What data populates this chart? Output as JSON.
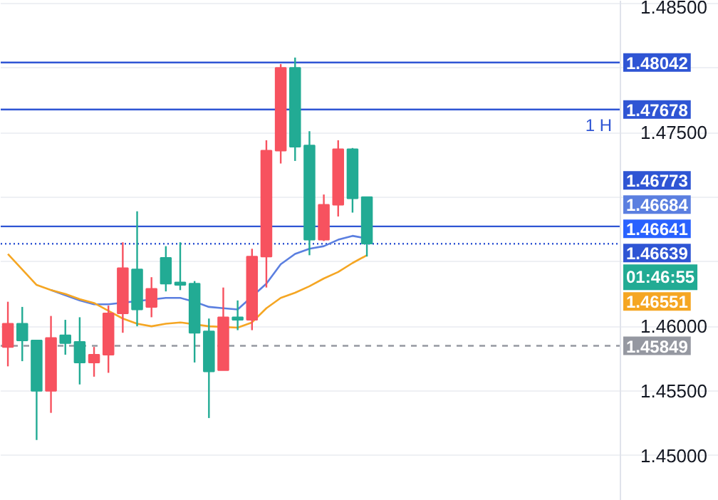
{
  "chart_data": {
    "type": "candlestick",
    "categories": [
      null,
      null,
      null,
      null,
      null,
      null,
      null,
      null,
      null,
      null,
      null,
      null,
      null,
      null,
      null,
      null,
      null,
      null,
      null,
      null,
      null,
      null,
      null,
      null,
      null,
      null,
      null,
      null,
      null,
      null,
      null,
      null,
      null,
      null,
      null,
      null,
      null,
      null,
      null,
      null,
      null,
      null,
      null,
      null,
      null,
      null,
      null,
      null,
      null,
      null
    ],
    "ohlc": [
      [
        1.4584,
        1.4619,
        1.4569,
        1.4602
      ],
      [
        1.4602,
        1.4615,
        1.4573,
        1.4589
      ],
      [
        1.4589,
        1.4589,
        1.4512,
        1.455
      ],
      [
        1.455,
        1.4608,
        1.4533,
        1.4591
      ],
      [
        1.4593,
        1.4605,
        1.4578,
        1.4587
      ],
      [
        1.4588,
        1.4607,
        1.4555,
        1.4572
      ],
      [
        1.4572,
        1.4584,
        1.4561,
        1.4578
      ],
      [
        1.4578,
        1.4616,
        1.4564,
        1.461
      ],
      [
        1.461,
        1.4665,
        1.4595,
        1.4645
      ],
      [
        1.4644,
        1.4689,
        1.46,
        1.4613
      ],
      [
        1.4615,
        1.4638,
        1.4607,
        1.4629
      ],
      [
        1.4653,
        1.4662,
        1.4627,
        1.4633
      ],
      [
        1.4634,
        1.4665,
        1.4628,
        1.4632
      ],
      [
        1.4633,
        1.4635,
        1.4572,
        1.4595
      ],
      [
        1.4596,
        1.4606,
        1.4529,
        1.4565
      ],
      [
        1.4566,
        1.463,
        1.4566,
        1.4607
      ],
      [
        1.4607,
        1.462,
        1.4597,
        1.4605
      ],
      [
        1.4605,
        1.466,
        1.4597,
        1.4654
      ],
      [
        1.4654,
        1.4744,
        1.463,
        1.4736
      ],
      [
        1.4736,
        1.4803,
        1.4726,
        1.48
      ],
      [
        1.48,
        1.4808,
        1.4728,
        1.4739
      ],
      [
        1.474,
        1.4751,
        1.4655,
        1.4667
      ],
      [
        1.4667,
        1.4702,
        1.4666,
        1.4694
      ],
      [
        1.4694,
        1.4744,
        1.4685,
        1.4737
      ],
      [
        1.4737,
        1.4738,
        1.4688,
        1.4699
      ],
      [
        1.47,
        1.47,
        1.4654,
        1.4664
      ],
      null,
      null,
      null,
      null,
      null,
      null,
      null,
      null,
      null,
      null,
      null,
      null,
      null,
      null,
      null,
      null,
      null,
      null,
      null,
      null,
      null,
      null,
      null,
      null
    ],
    "colors": [
      "#f7525f",
      "#22ab94",
      "#22ab94",
      "#f7525f",
      "#22ab94",
      "#22ab94",
      "#f7525f",
      "#f7525f",
      "#f7525f",
      "#22ab94",
      "#f7525f",
      "#22ab94",
      "#22ab94",
      "#22ab94",
      "#22ab94",
      "#f7525f",
      "#22ab94",
      "#f7525f",
      "#f7525f",
      "#f7525f",
      "#22ab94",
      "#22ab94",
      "#f7525f",
      "#f7525f",
      "#22ab94",
      "#22ab94",
      null,
      null,
      null,
      null,
      null,
      null,
      null,
      null,
      null,
      null,
      null,
      null,
      null,
      null,
      null,
      null,
      null,
      null,
      null,
      null,
      null,
      null,
      null,
      null
    ],
    "series": [
      {
        "type": "line",
        "color": "#5b7fe0",
        "values": [
          null,
          null,
          null,
          1.4628,
          1.4624,
          1.462,
          1.4617,
          1.4617,
          null,
          null,
          null,
          1.4622,
          1.4622,
          1.4619,
          1.4615,
          1.4614,
          1.4613,
          null,
          1.4633,
          1.4648,
          1.4656,
          1.466,
          1.4662,
          1.4667,
          1.467,
          1.4668,
          null,
          null,
          null,
          null,
          null,
          null,
          null,
          null,
          null,
          null,
          null,
          null,
          null,
          null,
          null,
          null,
          null,
          null,
          null,
          null,
          null,
          null,
          null,
          null
        ]
      },
      {
        "type": "line",
        "color": "#f5a623",
        "values": [
          1.4656,
          1.4644,
          1.4632,
          1.4628,
          1.4625,
          1.4621,
          1.4618,
          1.4612,
          1.4606,
          1.4602,
          1.46,
          1.4602,
          1.4603,
          null,
          1.46,
          null,
          1.4599,
          1.4603,
          1.4614,
          1.4622,
          1.4626,
          1.4631,
          1.4637,
          1.4642,
          1.4649,
          1.4655,
          null,
          null,
          null,
          null,
          null,
          null,
          null,
          null,
          null,
          null,
          null,
          null,
          null,
          null,
          null,
          null,
          null,
          null,
          null,
          null,
          null,
          null,
          null,
          null
        ]
      }
    ],
    "ylim": [
      1.4465,
      1.4852
    ],
    "yticks": [
      {
        "value": 1.45,
        "label": "1.45000"
      },
      {
        "value": 1.455,
        "label": "1.45500"
      },
      {
        "value": 1.46,
        "label": "1.46000"
      },
      {
        "value": 1.465,
        "label": null
      },
      {
        "value": 1.47,
        "label": null
      },
      {
        "value": 1.475,
        "label": "1.47500"
      },
      {
        "value": 1.48,
        "label": null
      },
      {
        "value": 1.485,
        "label": "1.48500"
      }
    ],
    "tick_labels": "y",
    "grid": "y",
    "ref_lines": [
      {
        "axis": "y",
        "value": 1.48042,
        "label": "1.48042",
        "color": "#2f55d4",
        "line_style": "solid"
      },
      {
        "axis": "y",
        "value": 1.47678,
        "label": "1.47678",
        "color": "#2f55d4",
        "line_style": "solid"
      },
      {
        "axis": "y",
        "value": 1.46773,
        "label": "1.46773",
        "color": "#2f55d4",
        "line_style": "solid"
      },
      {
        "axis": "y",
        "value": 1.46639,
        "label": "1.46639",
        "color": "#2f55d4",
        "line_style": "dotted"
      },
      {
        "axis": "y",
        "value": 1.45849,
        "label": "1.45849",
        "color": "#9598a1",
        "line_style": "dashed"
      }
    ],
    "annotations": [
      "1.46684",
      "1.46641",
      "01:46:55",
      "1.46551",
      {
        "text": "1 H",
        "y": 1.47678
      }
    ]
  }
}
